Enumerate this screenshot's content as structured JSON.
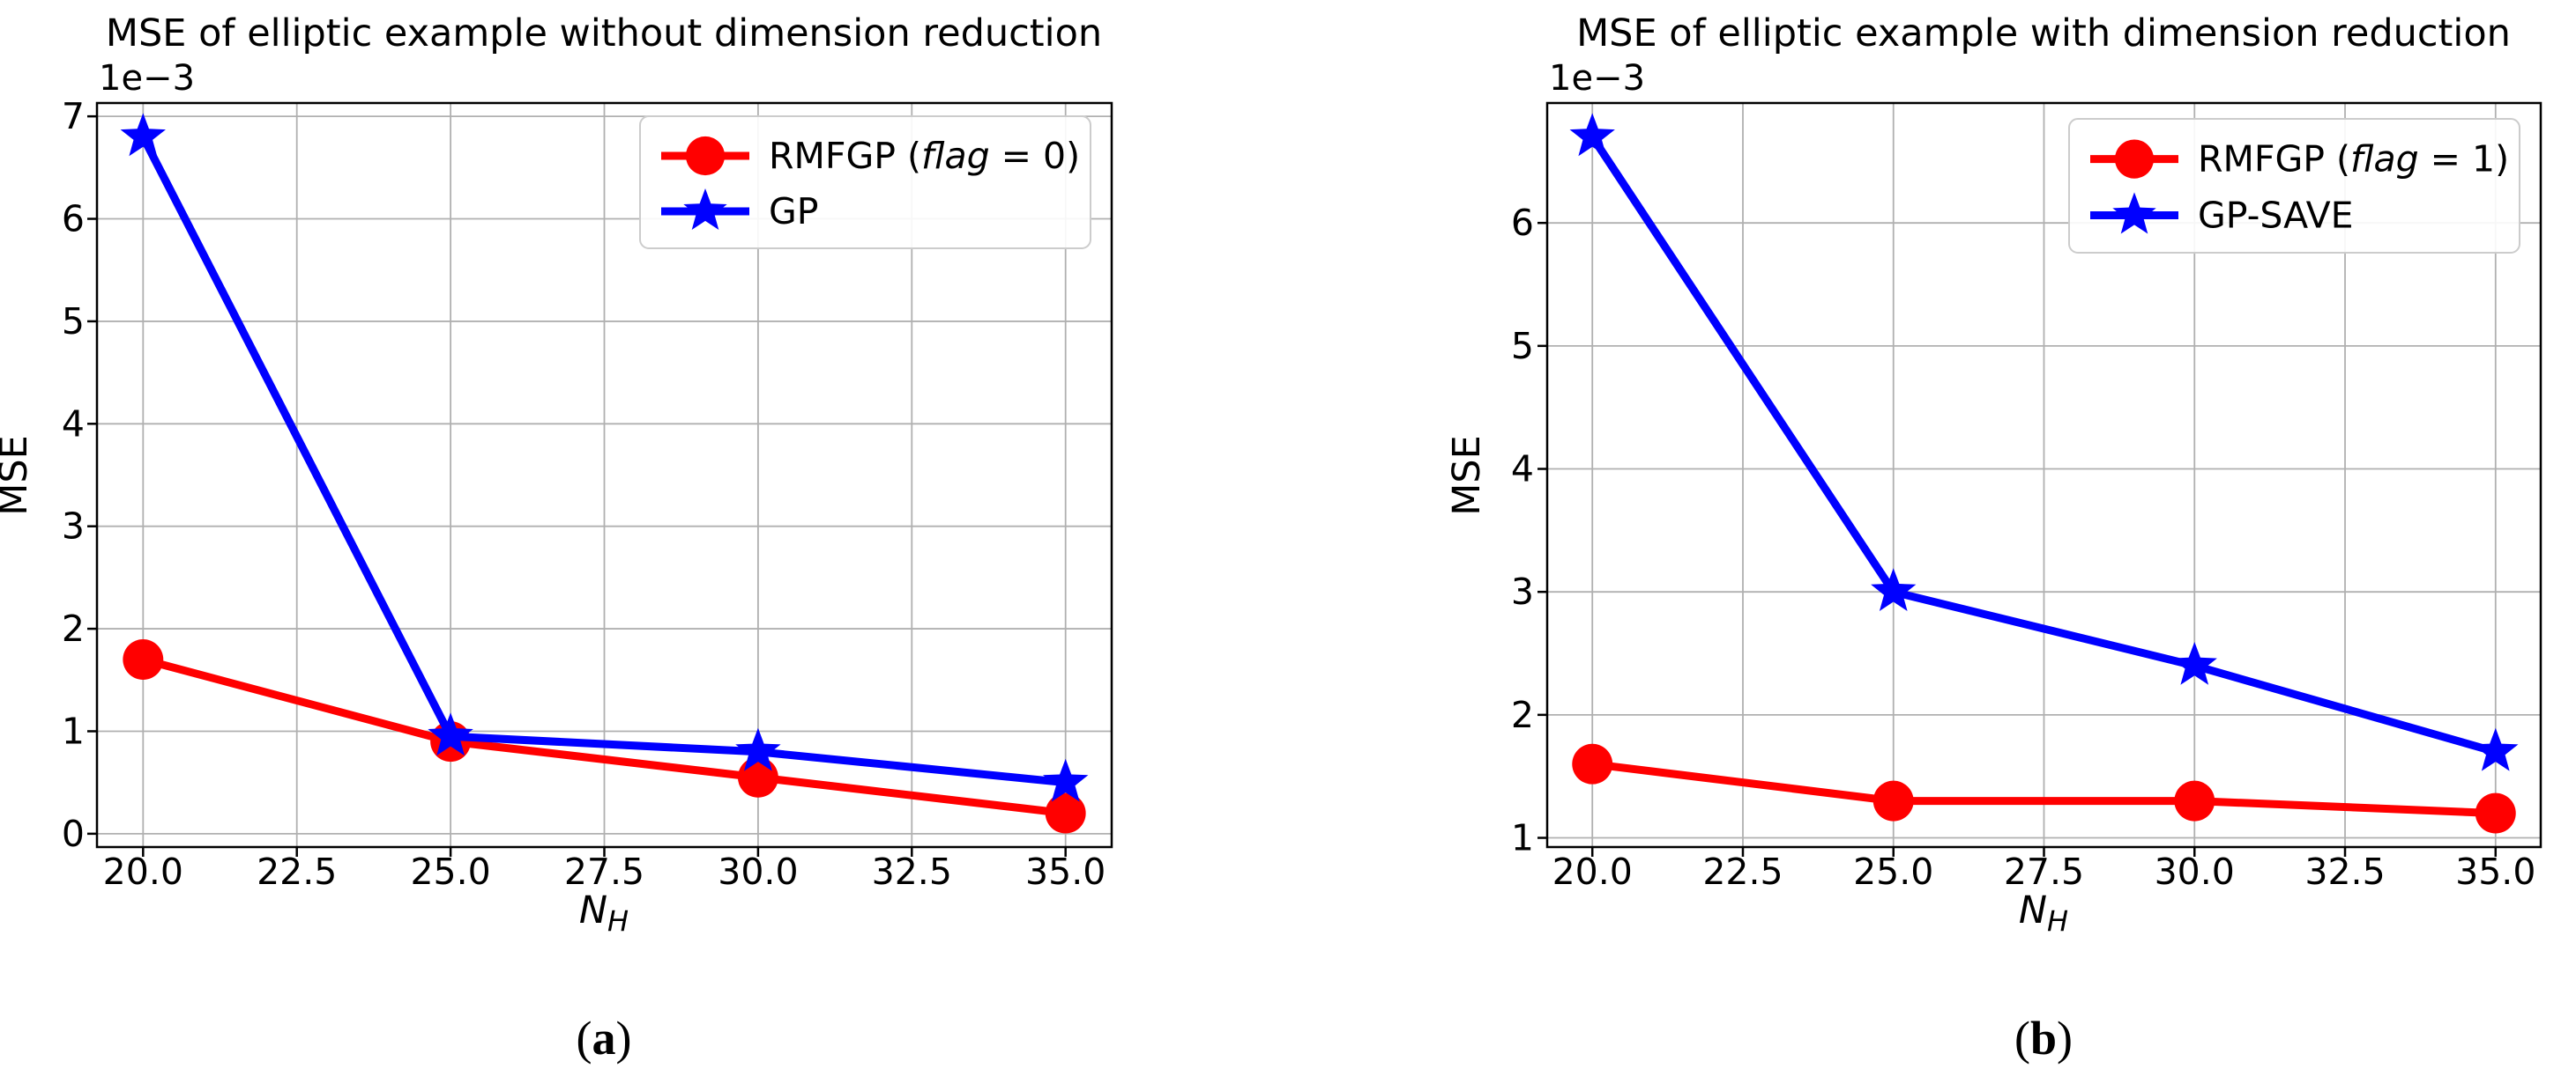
{
  "page": {
    "background": "#ffffff"
  },
  "captions": [
    {
      "pre": "(",
      "letter": "a",
      "post": ")"
    },
    {
      "pre": "(",
      "letter": "b",
      "post": ")"
    }
  ],
  "chart_data": [
    {
      "type": "line",
      "title": "MSE of elliptic example without dimension reduction",
      "xlabel_main": "N",
      "xlabel_sub": "H",
      "ylabel": "MSE",
      "offset_text": "1e−3",
      "unit_scale": "1e-3",
      "x": [
        20,
        25,
        30,
        35
      ],
      "series": [
        {
          "name": "RMFGP (flag = 0)",
          "legend_parts": {
            "prefix": "RMFGP (",
            "italic": "flag",
            "suffix": " = 0)"
          },
          "color": "#ff0000",
          "marker": "circle",
          "values_1e3": [
            1.7,
            0.9,
            0.55,
            0.2
          ]
        },
        {
          "name": "GP",
          "legend_parts": {
            "prefix": "GP",
            "italic": "",
            "suffix": ""
          },
          "color": "#0000ff",
          "marker": "star",
          "values_1e3": [
            6.8,
            0.95,
            0.8,
            0.5
          ]
        }
      ],
      "x_tick_values": [
        20,
        22.5,
        25,
        27.5,
        30,
        32.5,
        35
      ],
      "x_tick_labels": [
        "20.0",
        "22.5",
        "25.0",
        "27.5",
        "30.0",
        "32.5",
        "35.0"
      ],
      "y_tick_values": [
        0,
        1,
        2,
        3,
        4,
        5,
        6,
        7
      ],
      "y_tick_labels": [
        "0",
        "1",
        "2",
        "3",
        "4",
        "5",
        "6",
        "7"
      ],
      "xlim": [
        19.25,
        35.75
      ],
      "ylim_1e3": [
        -0.13,
        7.13
      ],
      "grid": true,
      "grid_color": "#b0b0b0",
      "axis_color": "#000000",
      "legend_loc": "upper right"
    },
    {
      "type": "line",
      "title": "MSE of elliptic example with dimension reduction",
      "xlabel_main": "N",
      "xlabel_sub": "H",
      "ylabel": "MSE",
      "offset_text": "1e−3",
      "unit_scale": "1e-3",
      "x": [
        20,
        25,
        30,
        35
      ],
      "series": [
        {
          "name": "RMFGP (flag = 1)",
          "legend_parts": {
            "prefix": "RMFGP (",
            "italic": "flag",
            "suffix": " = 1)"
          },
          "color": "#ff0000",
          "marker": "circle",
          "values_1e3": [
            1.6,
            1.3,
            1.3,
            1.2
          ]
        },
        {
          "name": "GP-SAVE",
          "legend_parts": {
            "prefix": "GP-SAVE",
            "italic": "",
            "suffix": ""
          },
          "color": "#0000ff",
          "marker": "star",
          "values_1e3": [
            6.7,
            3.0,
            2.4,
            1.7
          ]
        }
      ],
      "x_tick_values": [
        20,
        22.5,
        25,
        27.5,
        30,
        32.5,
        35
      ],
      "x_tick_labels": [
        "20.0",
        "22.5",
        "25.0",
        "27.5",
        "30.0",
        "32.5",
        "35.0"
      ],
      "y_tick_values": [
        1,
        2,
        3,
        4,
        5,
        6
      ],
      "y_tick_labels": [
        "1",
        "2",
        "3",
        "4",
        "5",
        "6"
      ],
      "xlim": [
        19.25,
        35.75
      ],
      "ylim_1e3": [
        0.925,
        6.975
      ],
      "grid": true,
      "grid_color": "#b0b0b0",
      "axis_color": "#000000",
      "legend_loc": "upper right"
    }
  ]
}
